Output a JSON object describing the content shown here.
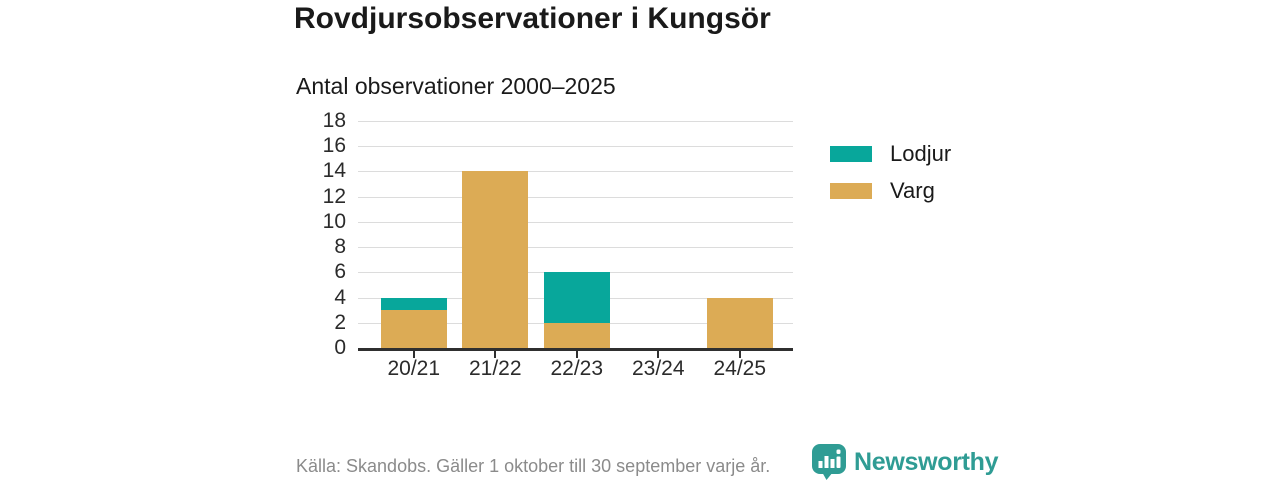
{
  "header": {
    "title": "Rovdjursobservationer i Kungsör"
  },
  "chart_data": {
    "type": "bar",
    "stacked": true,
    "title": "Antal observationer 2000–2025",
    "categories": [
      "20/21",
      "21/22",
      "22/23",
      "23/24",
      "24/25"
    ],
    "series": [
      {
        "name": "Lodjur",
        "color": "#08a79b",
        "values": [
          1,
          0,
          4,
          0,
          0
        ]
      },
      {
        "name": "Varg",
        "color": "#dcab55",
        "values": [
          3,
          14,
          2,
          0,
          4
        ]
      }
    ],
    "ylim": [
      0,
      18
    ],
    "ytick_step": 2,
    "grid": "horizontal",
    "legend_position": "right"
  },
  "footer": {
    "source": "Källa: Skandobs. Gäller 1 oktober till 30 september varje år.",
    "brand": "Newsworthy",
    "brand_color": "#2f9c94"
  }
}
